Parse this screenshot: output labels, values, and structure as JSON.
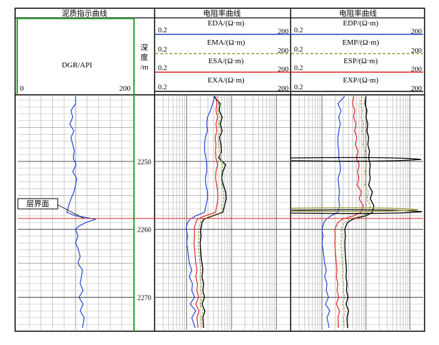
{
  "tracks": [
    {
      "title": "泥质指示曲线",
      "curves": [
        {
          "name": "DGR/API",
          "min": "0",
          "max": "200",
          "color": "#1f3fd8",
          "dash": "solid"
        }
      ]
    },
    {
      "title": "电阻率曲线",
      "curves": [
        {
          "name": "EDA/(Ω·m)",
          "min": "0.2",
          "max": "200",
          "color": "#1f3fd8",
          "dash": "solid"
        },
        {
          "name": "EMA/(Ω·m)",
          "min": "0.2",
          "max": "200",
          "color": "#9a9a3a",
          "dash": "dashed"
        },
        {
          "name": "ESA/(Ω·m)",
          "min": "0.2",
          "max": "200",
          "color": "#e02020",
          "dash": "solid"
        },
        {
          "name": "EXA/(Ω·m)",
          "min": "0.2",
          "max": "200",
          "color": "#000000",
          "dash": "solid"
        }
      ]
    },
    {
      "title": "电阻率曲线",
      "curves": [
        {
          "name": "EDP/(Ω·m)",
          "min": "0.2",
          "max": "200",
          "color": "#1f3fd8",
          "dash": "solid"
        },
        {
          "name": "EMP/(Ω·m)",
          "min": "0.2",
          "max": "200",
          "color": "#9a9a3a",
          "dash": "dashed"
        },
        {
          "name": "ESP/(Ω·m)",
          "min": "0.2",
          "max": "200",
          "color": "#e02020",
          "dash": "solid"
        },
        {
          "name": "EXP/(Ω·m)",
          "min": "0.2",
          "max": "200",
          "color": "#000000",
          "dash": "solid"
        }
      ]
    }
  ],
  "depth_track": {
    "label": "深度/m",
    "ticks": [
      "2250",
      "2260",
      "2270"
    ]
  },
  "annotation": {
    "label": "层界面",
    "depth": 2258.4,
    "color": "#e02020"
  },
  "chart_data": {
    "type": "line",
    "depth_range": [
      2240.3,
      2274.8
    ],
    "depth_ticks": [
      2250,
      2260,
      2270
    ],
    "gr_range": [
      0,
      200
    ],
    "res_range": [
      0.2,
      200
    ],
    "res_scale": "log",
    "series": {
      "DGR": {
        "depth": [
          2240.4,
          2241.5,
          2242.5,
          2243.5,
          2244.5,
          2245.5,
          2246.5,
          2247.5,
          2248.5,
          2249.5,
          2250.5,
          2251.5,
          2252.5,
          2253.5,
          2254.5,
          2255.5,
          2256.5,
          2257.5,
          2258.0,
          2258.5,
          2259.0,
          2259.5,
          2260.0,
          2261.0,
          2262.0,
          2263.0,
          2264.0,
          2265.0,
          2266.0,
          2267.0,
          2268.0,
          2269.0,
          2270.0,
          2271.0,
          2272.0,
          2273.0,
          2274.5
        ],
        "value": [
          100,
          100,
          92,
          95,
          90,
          97,
          92,
          95,
          98,
          96,
          101,
          95,
          102,
          100,
          97,
          92,
          88,
          85,
          100,
          135,
          118,
          106,
          100,
          104,
          100,
          105,
          108,
          104,
          112,
          110,
          108,
          113,
          106,
          113,
          108,
          115,
          112
        ]
      },
      "EDA": {
        "depth": [
          2240.4,
          2241.5,
          2242.5,
          2243.5,
          2244.5,
          2245.5,
          2246.5,
          2247.5,
          2248.5,
          2249.5,
          2250.5,
          2251.5,
          2252.5,
          2253.5,
          2254.5,
          2255.5,
          2256.5,
          2257.5,
          2258.0,
          2258.5,
          2259.0,
          2259.5,
          2260.0,
          2261.0,
          2262.0,
          2263.0,
          2264.0,
          2265.0,
          2266.0,
          2267.0,
          2268.0,
          2269.0,
          2270.0,
          2271.0,
          2272.0,
          2273.0,
          2274.5
        ],
        "value": [
          4.2,
          3.8,
          3.4,
          2.9,
          2.8,
          2.9,
          2.6,
          2.5,
          2.5,
          2.7,
          2.8,
          2.8,
          2.6,
          2.7,
          2.9,
          2.9,
          2.7,
          2.5,
          1.6,
          1.2,
          1.05,
          1.0,
          0.98,
          1.05,
          1.0,
          1.05,
          1.1,
          1.15,
          1.3,
          1.15,
          1.35,
          1.3,
          1.5,
          1.2,
          1.6,
          1.3,
          1.55
        ]
      },
      "EMA": {
        "depth": [
          2240.4,
          2241.5,
          2242.5,
          2243.5,
          2244.5,
          2245.5,
          2246.5,
          2247.5,
          2248.5,
          2249.5,
          2250.5,
          2251.5,
          2252.5,
          2253.5,
          2254.5,
          2255.5,
          2256.5,
          2257.5,
          2258.0,
          2258.5,
          2259.0,
          2259.5,
          2260.0,
          2261.0,
          2262.0,
          2263.0,
          2264.0,
          2265.0,
          2266.0,
          2267.0,
          2268.0,
          2269.0,
          2270.0,
          2271.0,
          2272.0,
          2273.0,
          2274.5
        ],
        "value": [
          4.8,
          5.2,
          4.9,
          5.6,
          5.2,
          5.6,
          5.0,
          5.2,
          5.5,
          5.8,
          6.4,
          6.0,
          5.9,
          6.2,
          6.6,
          6.7,
          6.4,
          6.0,
          3.6,
          2.3,
          2.05,
          1.95,
          1.85,
          1.9,
          1.8,
          1.85,
          1.9,
          2.0,
          2.05,
          2.0,
          2.15,
          2.1,
          2.25,
          2.0,
          2.3,
          2.1,
          2.2
        ]
      },
      "ESA": {
        "depth": [
          2240.4,
          2241.5,
          2242.5,
          2243.5,
          2244.5,
          2245.5,
          2246.5,
          2247.5,
          2248.5,
          2249.5,
          2250.5,
          2251.5,
          2252.5,
          2253.5,
          2254.5,
          2255.5,
          2256.5,
          2257.5,
          2258.0,
          2258.5,
          2259.0,
          2259.5,
          2260.0,
          2261.0,
          2262.0,
          2263.0,
          2264.0,
          2265.0,
          2266.0,
          2267.0,
          2268.0,
          2269.0,
          2270.0,
          2271.0,
          2272.0,
          2273.0,
          2274.5
        ],
        "value": [
          4.4,
          4.7,
          4.5,
          4.9,
          4.5,
          4.7,
          4.3,
          4.5,
          4.4,
          4.5,
          4.9,
          4.5,
          4.4,
          4.7,
          4.9,
          5.0,
          4.7,
          4.4,
          2.6,
          1.75,
          1.6,
          1.52,
          1.48,
          1.5,
          1.45,
          1.5,
          1.55,
          1.6,
          1.7,
          1.6,
          1.75,
          1.7,
          1.85,
          1.6,
          1.9,
          1.7,
          1.8
        ]
      },
      "EXA": {
        "depth": [
          2240.4,
          2241.5,
          2242.5,
          2243.5,
          2244.5,
          2245.5,
          2246.5,
          2247.5,
          2248.5,
          2249.5,
          2250.5,
          2251.5,
          2252.5,
          2253.5,
          2254.5,
          2255.5,
          2256.5,
          2257.5,
          2258.0,
          2258.5,
          2259.0,
          2259.5,
          2260.0,
          2261.0,
          2262.0,
          2263.0,
          2264.0,
          2265.0,
          2266.0,
          2267.0,
          2268.0,
          2269.0,
          2270.0,
          2271.0,
          2272.0,
          2273.0,
          2274.5
        ],
        "value": [
          4.0,
          5.6,
          5.3,
          6.2,
          5.6,
          6.2,
          5.4,
          5.8,
          6.0,
          5.2,
          7.4,
          6.4,
          6.0,
          6.6,
          7.4,
          7.6,
          7.0,
          6.4,
          3.9,
          2.45,
          2.2,
          2.15,
          2.05,
          2.1,
          2.0,
          2.05,
          2.1,
          2.2,
          2.3,
          2.2,
          2.4,
          2.3,
          2.5,
          2.2,
          2.55,
          2.3,
          2.4
        ]
      },
      "EDP": {
        "depth": [
          2240.4,
          2241.5,
          2242.5,
          2243.5,
          2244.5,
          2245.5,
          2246.5,
          2247.5,
          2248.5,
          2249.5,
          2250.5,
          2251.5,
          2252.5,
          2253.5,
          2254.5,
          2255.5,
          2256.5,
          2257.5,
          2258.0,
          2258.5,
          2259.0,
          2259.5,
          2260.0,
          2261.0,
          2262.0,
          2263.0,
          2264.0,
          2265.0,
          2266.0,
          2267.0,
          2268.0,
          2269.0,
          2270.0,
          2271.0,
          2272.0,
          2273.0,
          2274.5
        ],
        "value": [
          3.3,
          2.3,
          2.7,
          2.4,
          2.6,
          2.4,
          2.3,
          2.3,
          2.4,
          2.4,
          2.6,
          2.6,
          2.3,
          2.4,
          2.5,
          2.4,
          2.5,
          2.3,
          1.6,
          1.25,
          1.1,
          1.05,
          1.0,
          1.05,
          1.0,
          1.05,
          1.1,
          1.15,
          1.25,
          1.15,
          1.3,
          1.25,
          1.4,
          1.2,
          1.5,
          1.3,
          1.45
        ]
      },
      "EMP": {
        "depth": [
          2240.4,
          2241.5,
          2242.5,
          2243.5,
          2244.5,
          2245.5,
          2246.5,
          2247.5,
          2248.5,
          2249.5,
          2250.5,
          2251.5,
          2252.5,
          2253.5,
          2254.5,
          2255.5,
          2256.5,
          2257.5,
          2258.0,
          2258.5,
          2259.0,
          2259.5,
          2260.0,
          2261.0,
          2262.0,
          2263.0,
          2264.0,
          2265.0,
          2266.0,
          2267.0,
          2268.0,
          2269.0,
          2270.0,
          2271.0,
          2272.0,
          2273.0,
          2274.5
        ],
        "value": [
          8.0,
          7.5,
          8.2,
          7.8,
          8.6,
          8.2,
          9.0,
          8.6,
          9.6,
          9.2,
          10.2,
          9.6,
          10.0,
          9.4,
          11.5,
          10.5,
          12.5,
          11.5,
          8.0,
          4.2,
          3.2,
          2.9,
          2.7,
          2.8,
          2.7,
          2.75,
          2.8,
          2.9,
          3.0,
          2.9,
          3.1,
          3.0,
          3.3,
          2.9,
          3.4,
          3.1,
          3.2
        ]
      },
      "ESP": {
        "depth": [
          2240.4,
          2241.5,
          2242.5,
          2243.5,
          2244.5,
          2245.5,
          2246.5,
          2247.5,
          2248.5,
          2249.5,
          2250.5,
          2251.5,
          2252.5,
          2253.5,
          2254.5,
          2255.5,
          2256.5,
          2257.5,
          2258.0,
          2258.5,
          2259.0,
          2259.5,
          2260.0,
          2261.0,
          2262.0,
          2263.0,
          2264.0,
          2265.0,
          2266.0,
          2267.0,
          2268.0,
          2269.0,
          2270.0,
          2271.0,
          2272.0,
          2273.0,
          2274.5
        ],
        "value": [
          5.3,
          4.9,
          5.6,
          5.2,
          5.9,
          5.5,
          6.2,
          5.7,
          6.6,
          6.1,
          7.0,
          6.4,
          6.8,
          6.3,
          7.9,
          7.0,
          8.6,
          7.7,
          5.3,
          2.9,
          2.3,
          2.1,
          1.95,
          2.0,
          1.95,
          2.0,
          2.05,
          2.1,
          2.2,
          2.1,
          2.3,
          2.2,
          2.4,
          2.1,
          2.5,
          2.3,
          2.35
        ]
      },
      "EXP": {
        "depth": [
          2240.4,
          2241.5,
          2242.5,
          2243.5,
          2244.5,
          2245.5,
          2246.5,
          2247.5,
          2248.5,
          2249.5,
          2250.5,
          2251.5,
          2252.5,
          2253.5,
          2254.5,
          2255.5,
          2256.5,
          2257.5,
          2258.0,
          2258.5,
          2259.0,
          2259.5,
          2260.0,
          2261.0,
          2262.0,
          2263.0,
          2264.0,
          2265.0,
          2266.0,
          2267.0,
          2268.0,
          2269.0,
          2270.0,
          2271.0,
          2272.0,
          2273.0,
          2274.5
        ],
        "value": [
          10.0,
          9.5,
          10.5,
          10.0,
          11.0,
          10.5,
          11.5,
          11.0,
          12.0,
          11.5,
          12.5,
          12.0,
          12.5,
          11.5,
          14.0,
          12.5,
          15.0,
          14.0,
          10.0,
          5.0,
          3.8,
          3.5,
          3.3,
          3.4,
          3.3,
          3.35,
          3.4,
          3.5,
          3.6,
          3.5,
          3.7,
          3.6,
          3.9,
          3.5,
          4.0,
          3.7,
          3.8
        ]
      }
    },
    "spikes": [
      {
        "track": 2,
        "depth": 2249.7,
        "value": 180,
        "color": "#000000"
      },
      {
        "track": 2,
        "depth": 2257.4,
        "value": 190,
        "color": "#000000"
      },
      {
        "track": 2,
        "depth": 2257.1,
        "value": 150,
        "color": "#9a9a3a"
      }
    ]
  }
}
